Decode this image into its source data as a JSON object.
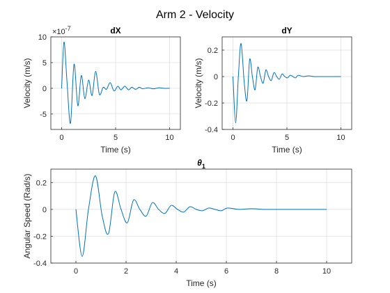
{
  "figure": {
    "title": "Arm 2 - Velocity",
    "line_color": "#0072BD",
    "grid_color": "#DCDCDC",
    "axes_color": "#262626"
  },
  "chart_data": [
    {
      "type": "line",
      "title": "dX",
      "xlabel": "Time (s)",
      "ylabel": "Velocity (m/s)",
      "exponent_label": "×10",
      "exponent_power": "-7",
      "xlim": [
        -1,
        11
      ],
      "ylim": [
        -8,
        10
      ],
      "xticks": [
        0,
        5,
        10
      ],
      "yticks": [
        -5,
        0,
        5,
        10
      ],
      "grid": true,
      "series": [
        {
          "x": [
            0,
            0.22,
            0.5,
            0.82,
            1.15,
            1.5,
            1.82,
            2.15,
            2.5,
            2.82,
            3.15,
            3.5,
            3.85,
            4.15,
            4.5,
            4.85,
            5.2,
            5.5,
            5.85,
            6.2,
            6.5,
            6.85,
            7.2,
            7.5,
            8.0,
            8.5,
            9.0,
            9.5,
            10
          ],
          "values": [
            0,
            9.0,
            1.2,
            -6.8,
            4.7,
            -3.4,
            2.5,
            -2.0,
            1.6,
            -1.4,
            3.3,
            -1.2,
            0.2,
            -0.2,
            1.1,
            -0.5,
            0.4,
            -0.3,
            0.4,
            -0.3,
            0.2,
            -0.2,
            0.2,
            -0.1,
            0.1,
            -0.1,
            0.1,
            0,
            0
          ]
        }
      ]
    },
    {
      "type": "line",
      "title": "dY",
      "xlabel": "Time (s)",
      "ylabel": "Velocity (m/s)",
      "xlim": [
        -1,
        11
      ],
      "ylim": [
        -0.4,
        0.3
      ],
      "xticks": [
        0,
        5,
        10
      ],
      "yticks": [
        -0.4,
        -0.2,
        0,
        0.2
      ],
      "grid": true,
      "series": [
        {
          "x": [
            0,
            0.25,
            0.5,
            0.75,
            1.05,
            1.3,
            1.55,
            1.8,
            2.05,
            2.3,
            2.55,
            2.8,
            3.05,
            3.3,
            3.55,
            3.8,
            4.05,
            4.3,
            4.55,
            4.8,
            5.05,
            5.3,
            5.55,
            5.8,
            6.05,
            6.5,
            7.0,
            7.5,
            8.0,
            8.5,
            9.0,
            10
          ],
          "values": [
            0,
            -0.35,
            0.0,
            0.25,
            -0.05,
            -0.18,
            0.13,
            0.0,
            -0.1,
            0.07,
            0.0,
            -0.05,
            0.05,
            0.0,
            -0.03,
            0.03,
            0.0,
            -0.02,
            0.02,
            0.0,
            -0.01,
            0.01,
            0.0,
            -0.01,
            0.01,
            0.0,
            0.005,
            0.0,
            0.0,
            0.0,
            0.0,
            0.0
          ]
        }
      ]
    },
    {
      "type": "line",
      "title": "θ",
      "title_subscript": "1",
      "xlabel": "Time (s)",
      "ylabel": "Angular Speed (Rad/s)",
      "xlim": [
        -1,
        11
      ],
      "ylim": [
        -0.4,
        0.3
      ],
      "xticks": [
        0,
        2,
        4,
        6,
        8,
        10
      ],
      "yticks": [
        -0.4,
        -0.2,
        0,
        0.2
      ],
      "grid": true,
      "series": [
        {
          "x": [
            0,
            0.25,
            0.5,
            0.78,
            1.05,
            1.3,
            1.55,
            1.8,
            2.05,
            2.3,
            2.55,
            2.8,
            3.05,
            3.3,
            3.55,
            3.8,
            4.05,
            4.3,
            4.55,
            4.8,
            5.05,
            5.3,
            5.55,
            5.8,
            6.05,
            6.5,
            7.0,
            7.5,
            8.0,
            8.5,
            9.0,
            10
          ],
          "values": [
            0,
            -0.35,
            0.0,
            0.25,
            -0.05,
            -0.18,
            0.13,
            0.0,
            -0.1,
            0.07,
            0.0,
            -0.05,
            0.05,
            0.0,
            -0.03,
            0.03,
            0.0,
            -0.02,
            0.02,
            0.0,
            -0.01,
            0.01,
            0.0,
            -0.01,
            0.01,
            0.0,
            0.005,
            0.0,
            0.0,
            0.0,
            0.0,
            0.0
          ]
        }
      ]
    }
  ]
}
